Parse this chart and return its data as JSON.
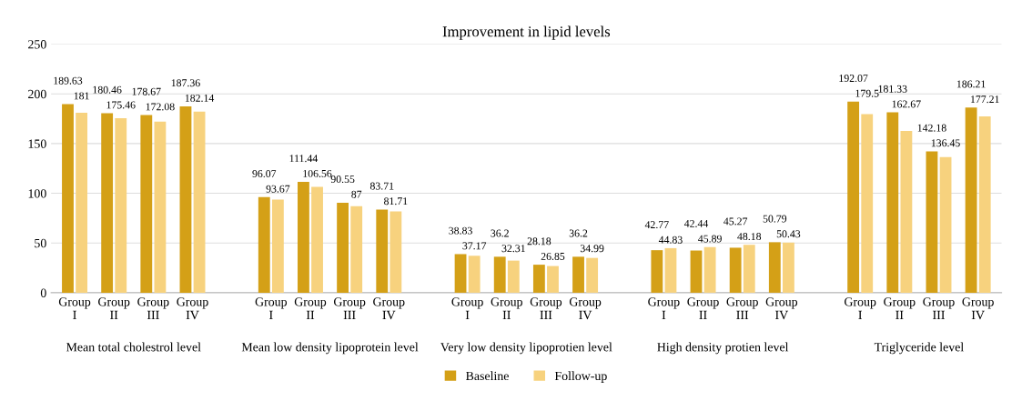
{
  "chart_data": {
    "type": "bar",
    "title": "Improvement in lipid levels",
    "categories": [
      "Group I",
      "Group II",
      "Group III",
      "Group IV",
      null,
      "Group I",
      "Group II",
      "Group III",
      "Group IV",
      null,
      "Group I",
      "Group II",
      "Group III",
      "Group IV",
      null,
      "Group I",
      "Group II",
      "Group III",
      "Group IV",
      null,
      "Group I",
      "Group II",
      "Group III",
      "Group IV"
    ],
    "series": [
      {
        "name": "Baseline",
        "color": "#d4a017",
        "values": [
          189.63,
          180.46,
          178.67,
          187.36,
          null,
          96.07,
          111.44,
          90.55,
          83.71,
          null,
          38.83,
          36.2,
          28.18,
          36.2,
          null,
          42.77,
          42.44,
          45.27,
          50.79,
          null,
          192.07,
          181.33,
          142.18,
          186.21
        ]
      },
      {
        "name": "Follow-up",
        "color": "#f7d27e",
        "values": [
          181,
          175.46,
          172.08,
          182.14,
          null,
          93.67,
          106.56,
          87,
          81.71,
          null,
          37.17,
          32.31,
          26.85,
          34.99,
          null,
          44.83,
          45.89,
          48.18,
          50.43,
          null,
          179.5,
          162.67,
          136.45,
          177.21
        ]
      }
    ],
    "annotations": [
      "Mean total cholestrol level",
      "Mean low density lipoprotein level",
      "Very low density lipoprotien level",
      "High density protien level",
      "Triglyceride level"
    ],
    "ylim": [
      0,
      250
    ],
    "yticks": [
      0,
      50,
      100,
      150,
      200,
      250
    ],
    "grid": "y",
    "legend": "bottom",
    "data_labels": true
  }
}
